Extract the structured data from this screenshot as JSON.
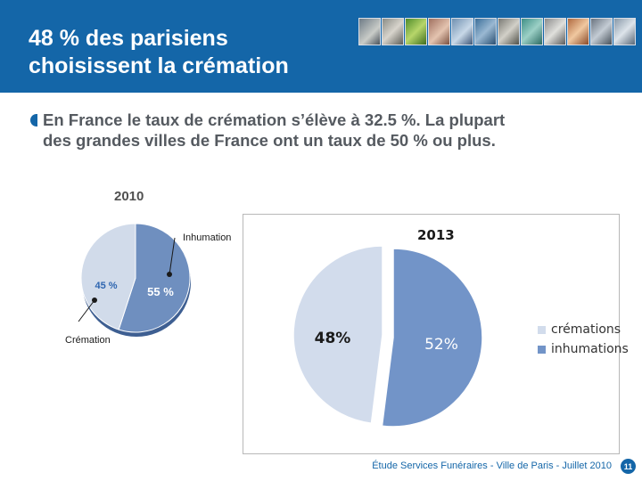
{
  "header": {
    "title_line1": "48 % des parisiens",
    "title_line2": "choisissent la crémation"
  },
  "bullet": {
    "line1": "En France le taux de crémation s’élève à 32.5 %. La plupart",
    "line2": "des grandes villes de France ont un taux de 50 % ou plus."
  },
  "chart_data": [
    {
      "type": "pie",
      "title": "2010",
      "categories": [
        "Inhumation",
        "Crémation"
      ],
      "values": [
        55,
        45
      ],
      "labels": [
        "55 %",
        "45 %"
      ],
      "callouts": [
        "Inhumation",
        "Crémation"
      ],
      "colors": [
        "#6f8fbf",
        "#d1dbea"
      ]
    },
    {
      "type": "pie",
      "title": "2013",
      "categories": [
        "inhumations",
        "crémations"
      ],
      "values": [
        52,
        48
      ],
      "labels": [
        "52%",
        "48%"
      ],
      "legend": [
        "crémations",
        "inhumations"
      ],
      "legend_position": "right",
      "colors": [
        "#7294c8",
        "#d2dcec"
      ]
    }
  ],
  "footer": {
    "source": "Étude Services Funéraires - Ville de Paris - Juillet 2010",
    "page": "11"
  },
  "colors": {
    "header_bg": "#1466a8",
    "text_gray": "#555a60"
  }
}
